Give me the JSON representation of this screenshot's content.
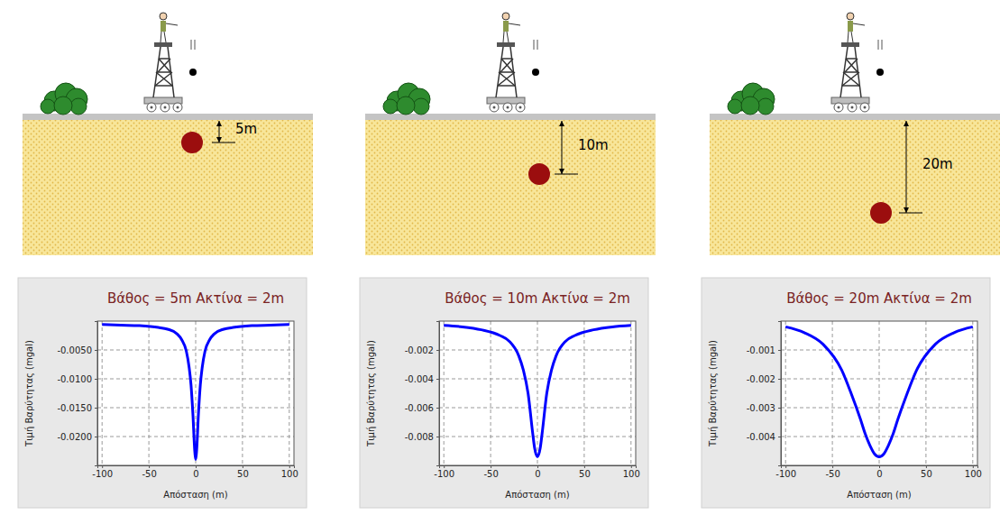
{
  "chart_data": [
    {
      "type": "line",
      "title": "Βάθος = 5m  Ακτίνα = 2m",
      "x_label": "Απόσταση (m)",
      "y_label": "Τιμή Βαρύτητας (mgal)",
      "x": [
        -100,
        -80,
        -60,
        -40,
        -30,
        -20,
        -15,
        -10,
        -7,
        -5,
        -3,
        -1,
        0,
        1,
        3,
        5,
        7,
        10,
        15,
        20,
        30,
        40,
        60,
        80,
        100
      ],
      "series": [
        {
          "color": "#0000ff",
          "values": [
            -0.0006,
            -0.0007,
            -0.0008,
            -0.0011,
            -0.0014,
            -0.0022,
            -0.0032,
            -0.0052,
            -0.008,
            -0.011,
            -0.016,
            -0.0225,
            -0.024,
            -0.0225,
            -0.016,
            -0.011,
            -0.008,
            -0.0052,
            -0.0032,
            -0.0022,
            -0.0014,
            -0.0011,
            -0.0008,
            -0.0007,
            -0.0006
          ]
        }
      ],
      "xlim": [
        -105,
        105
      ],
      "xticks": [
        -100,
        -50,
        0,
        50,
        100
      ],
      "ylim": [
        -0.025,
        0.0
      ],
      "yticks": [
        {
          "value": -0.005,
          "label": "-0.0050"
        },
        {
          "value": -0.01,
          "label": "-0.0100"
        },
        {
          "value": -0.015,
          "label": "-0.0150"
        },
        {
          "value": -0.02,
          "label": "-0.0200"
        }
      ],
      "grid": true
    },
    {
      "type": "line",
      "title": "Βάθος = 10m  Ακτίνα = 2m",
      "x_label": "Απόσταση (m)",
      "y_label": "Τιμή Βαρύτητας (mgal)",
      "x": [
        -100,
        -80,
        -60,
        -40,
        -30,
        -20,
        -15,
        -10,
        -5,
        -3,
        0,
        3,
        5,
        10,
        15,
        20,
        30,
        40,
        60,
        80,
        100
      ],
      "series": [
        {
          "color": "#0000ff",
          "values": [
            -0.0003,
            -0.0004,
            -0.0006,
            -0.001,
            -0.0014,
            -0.0024,
            -0.0034,
            -0.005,
            -0.0078,
            -0.0088,
            -0.0094,
            -0.0088,
            -0.0078,
            -0.005,
            -0.0034,
            -0.0024,
            -0.0014,
            -0.001,
            -0.0006,
            -0.0004,
            -0.0003
          ]
        }
      ],
      "xlim": [
        -105,
        105
      ],
      "xticks": [
        -100,
        -50,
        0,
        50,
        100
      ],
      "ylim": [
        -0.01,
        0.0
      ],
      "yticks": [
        -0.002,
        -0.004,
        -0.006,
        -0.008
      ],
      "grid": true
    },
    {
      "type": "line",
      "title": "Βάθος = 20m  Ακτίνα = 2m",
      "x_label": "Απόσταση (m)",
      "y_label": "Τιμή Βαρύτητας (mgal)",
      "x": [
        -100,
        -80,
        -60,
        -40,
        -30,
        -20,
        -15,
        -10,
        -5,
        0,
        5,
        10,
        15,
        20,
        30,
        40,
        60,
        80,
        100
      ],
      "series": [
        {
          "color": "#0000ff",
          "values": [
            -0.0002,
            -0.0004,
            -0.0008,
            -0.0017,
            -0.0025,
            -0.0034,
            -0.0039,
            -0.0043,
            -0.0046,
            -0.0047,
            -0.0046,
            -0.0043,
            -0.0039,
            -0.0034,
            -0.0025,
            -0.0017,
            -0.0008,
            -0.0004,
            -0.0002
          ]
        }
      ],
      "xlim": [
        -105,
        105
      ],
      "xticks": [
        -100,
        -50,
        0,
        50,
        100
      ],
      "ylim": [
        -0.005,
        0.0
      ],
      "yticks": [
        -0.001,
        -0.002,
        -0.003,
        -0.004
      ],
      "grid": true
    }
  ],
  "illustrations": [
    {
      "depth_label": "5m"
    },
    {
      "depth_label": "10m"
    },
    {
      "depth_label": "20m"
    }
  ]
}
